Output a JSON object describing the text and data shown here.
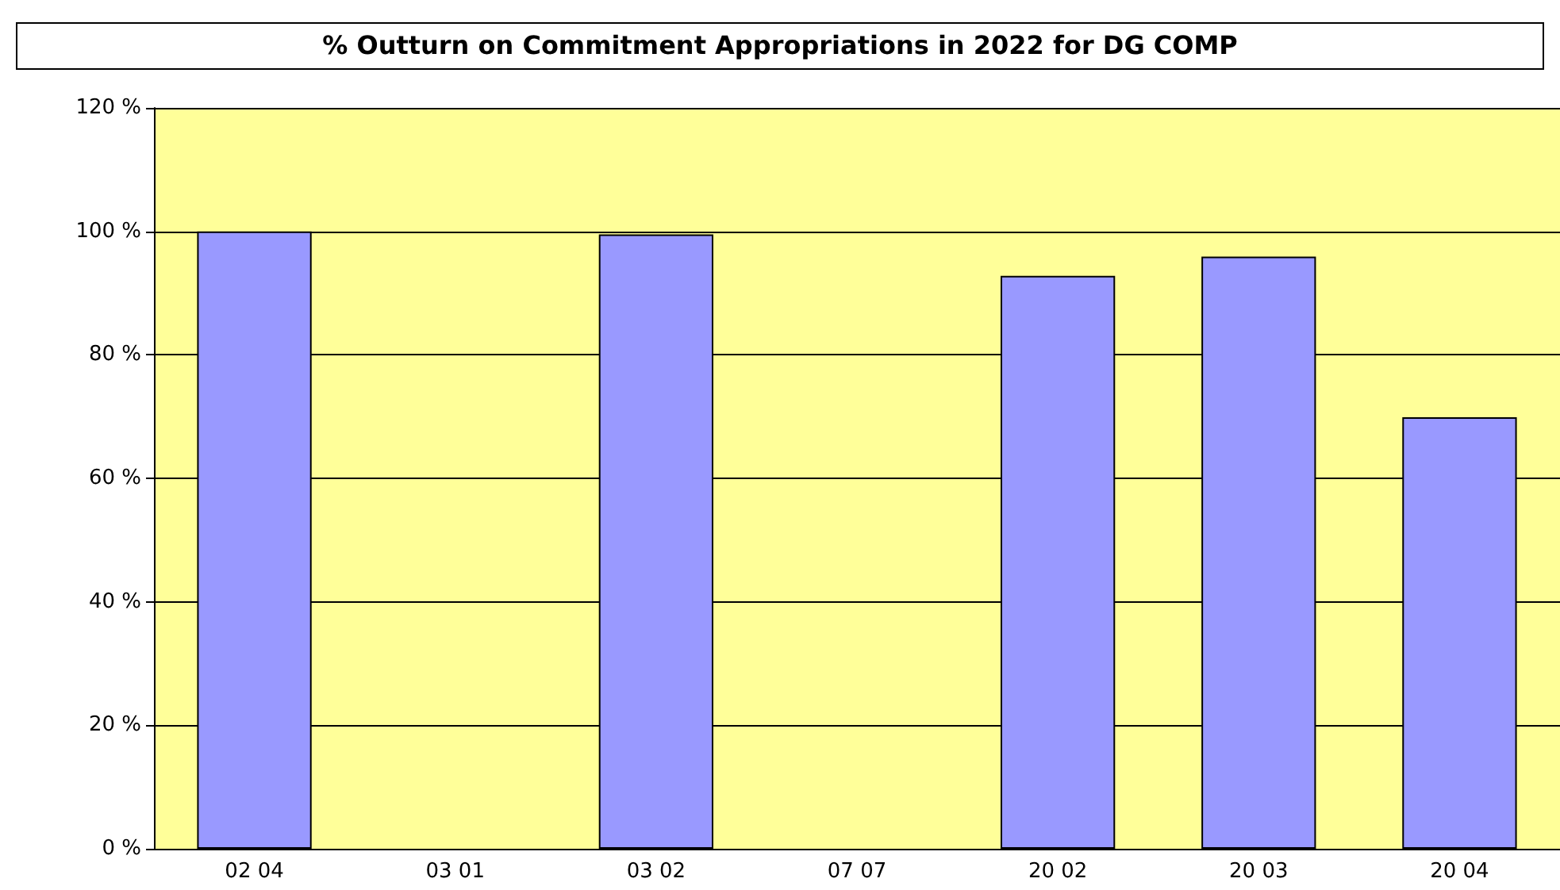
{
  "chart_data": {
    "type": "bar",
    "title": "% Outturn on Commitment Appropriations in 2022 for DG COMP",
    "categories": [
      "02 04",
      "03 01",
      "03 02",
      "07 07",
      "20 02",
      "20 03",
      "20 04"
    ],
    "values": [
      100,
      null,
      99.5,
      null,
      92.8,
      95.9,
      69.9
    ],
    "color": "#9999ff",
    "ylim": [
      0,
      120
    ],
    "yticks": [
      {
        "value": 0,
        "label": "0 %"
      },
      {
        "value": 20,
        "label": "20 %"
      },
      {
        "value": 40,
        "label": "40 %"
      },
      {
        "value": 60,
        "label": "60 %"
      },
      {
        "value": 80,
        "label": "80 %"
      },
      {
        "value": 100,
        "label": "100 %"
      },
      {
        "value": 120,
        "label": "120 %"
      }
    ],
    "grid": "y"
  }
}
